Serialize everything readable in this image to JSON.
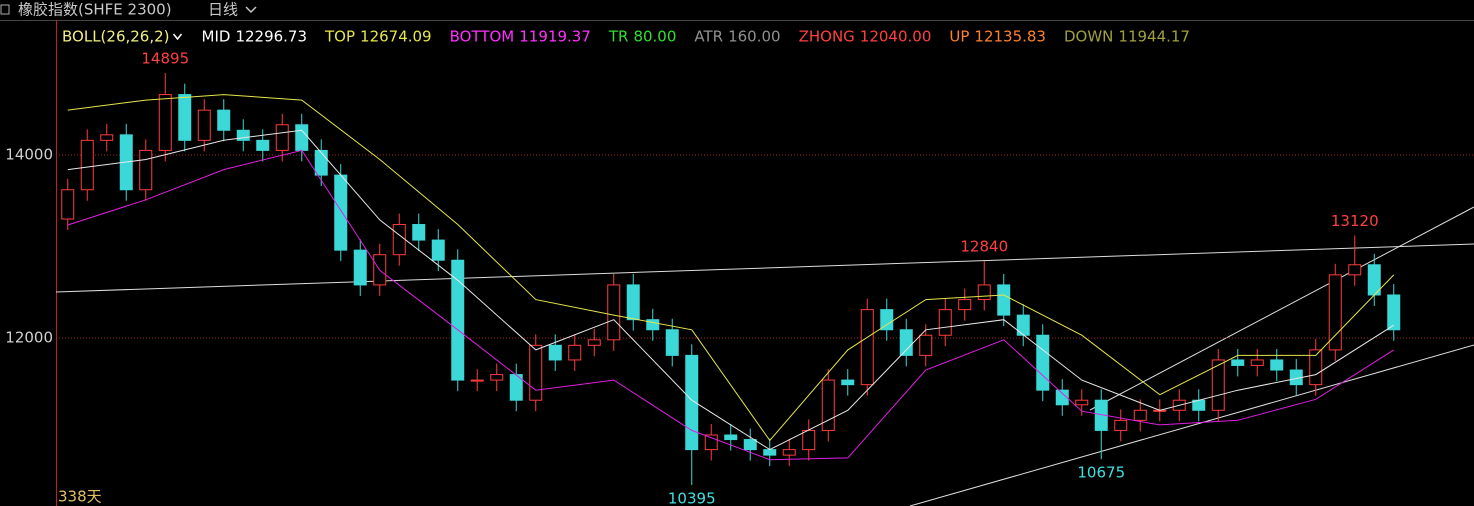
{
  "header": {
    "title": "橡胶指数(SHFE 2300)",
    "period": "日线"
  },
  "chart_data": {
    "type": "candlestick",
    "ylim": [
      10164,
      15475
    ],
    "yticks": [
      12000,
      14000
    ],
    "grid": true,
    "up_color": "#ff3c3c",
    "down_color": "#3cd8d8",
    "open": [
      13300,
      13620,
      14160,
      14220,
      13620,
      14050,
      14660,
      14160,
      14490,
      14270,
      14160,
      14050,
      14330,
      14050,
      13780,
      12960,
      12580,
      12910,
      13240,
      13070,
      12850,
      11540,
      11540,
      11600,
      11320,
      11920,
      11760,
      11920,
      11980,
      12580,
      12200,
      12090,
      11810,
      10780,
      10940,
      10890,
      10780,
      10720,
      10780,
      10990,
      11540,
      11490,
      12310,
      12090,
      11810,
      12030,
      12310,
      12420,
      12580,
      12250,
      12030,
      11430,
      11270,
      11320,
      10990,
      11100,
      11210,
      11210,
      11320,
      11210,
      11760,
      11700,
      11760,
      11650,
      11490,
      11870,
      12690,
      12800,
      12470
    ],
    "high": [
      13740,
      14280,
      14340,
      14340,
      14170,
      14895,
      14780,
      14610,
      14610,
      14390,
      14280,
      14450,
      14450,
      14170,
      13900,
      13080,
      13030,
      13360,
      13360,
      13190,
      12970,
      11660,
      11720,
      11720,
      12040,
      12040,
      12040,
      12100,
      12700,
      12700,
      12320,
      12210,
      11930,
      11060,
      11060,
      11010,
      10900,
      10900,
      11110,
      11660,
      11660,
      12430,
      12430,
      12210,
      12150,
      12430,
      12540,
      12840,
      12700,
      12370,
      12150,
      11550,
      11440,
      11440,
      11220,
      11330,
      11330,
      11440,
      11440,
      11880,
      11880,
      11880,
      11880,
      11770,
      11990,
      12810,
      13120,
      12920,
      12590
    ],
    "low": [
      13180,
      13500,
      14040,
      13500,
      13500,
      13930,
      14040,
      14040,
      14150,
      14040,
      13930,
      13930,
      13930,
      13660,
      12840,
      12460,
      12460,
      12790,
      12950,
      12730,
      11420,
      11420,
      11420,
      11200,
      11200,
      11640,
      11640,
      11800,
      11860,
      12080,
      11970,
      11690,
      10395,
      10660,
      10770,
      10660,
      10600,
      10600,
      10660,
      10870,
      11370,
      11370,
      11970,
      11690,
      11690,
      11910,
      12190,
      12300,
      12130,
      11910,
      11310,
      11150,
      11150,
      10675,
      10870,
      10980,
      11090,
      11090,
      11090,
      11090,
      11580,
      11580,
      11530,
      11370,
      11370,
      11750,
      12570,
      12350,
      11970
    ],
    "close": [
      13620,
      14160,
      14220,
      13620,
      14050,
      14660,
      14160,
      14490,
      14270,
      14160,
      14050,
      14330,
      14050,
      13780,
      12960,
      12580,
      12910,
      13240,
      13070,
      12850,
      11540,
      11540,
      11600,
      11320,
      11920,
      11760,
      11920,
      11980,
      12580,
      12200,
      12090,
      11810,
      10780,
      10940,
      10890,
      10780,
      10720,
      10780,
      10990,
      11540,
      11490,
      12310,
      12090,
      11810,
      12030,
      12310,
      12420,
      12580,
      12250,
      12030,
      11430,
      11270,
      11320,
      10990,
      11100,
      11210,
      11210,
      11320,
      11210,
      11760,
      11700,
      11760,
      11650,
      11490,
      11870,
      12690,
      12800,
      12470,
      12090
    ],
    "boll": {
      "x": [
        0,
        4,
        8,
        12,
        16,
        20,
        24,
        28,
        32,
        36,
        40,
        44,
        48,
        52,
        56,
        60,
        64,
        68
      ],
      "mid": [
        13840,
        13950,
        14160,
        14270,
        13290,
        12630,
        11870,
        12200,
        11320,
        10780,
        11210,
        12090,
        12200,
        11540,
        11210,
        11430,
        11600,
        12140
      ],
      "top": [
        14490,
        14600,
        14660,
        14600,
        13950,
        13240,
        12420,
        12250,
        12090,
        10880,
        11870,
        12420,
        12470,
        12030,
        11380,
        11810,
        11810,
        12690
      ],
      "bottom": [
        13235,
        13510,
        13840,
        14050,
        12740,
        12090,
        11430,
        11540,
        10990,
        10670,
        10690,
        11650,
        11980,
        11200,
        11050,
        11100,
        11330,
        11870
      ],
      "mid_color": "#e8e8e8",
      "top_color": "#e6e64a",
      "bottom_color": "#e020e0"
    },
    "legend": [
      {
        "name": "BOLL(26,26,2)",
        "color": "#f0f080"
      },
      {
        "name": "MID",
        "value": 12296.73,
        "color": "#ffffff"
      },
      {
        "name": "TOP",
        "value": 12674.09,
        "color": "#e6e64a"
      },
      {
        "name": "BOTTOM",
        "value": 11919.37,
        "color": "#ff30ff"
      },
      {
        "name": "TR",
        "value": 80,
        "value_label": "80.00",
        "color": "#30e030"
      },
      {
        "name": "ATR",
        "value": 160,
        "value_label": "160.00",
        "color": "#909090"
      },
      {
        "name": "ZHONG",
        "value": 12040,
        "value_label": "12040.00",
        "color": "#ff4040"
      },
      {
        "name": "UP",
        "value": 12135.83,
        "color": "#ff8030"
      },
      {
        "name": "DOWN",
        "value": 11944.17,
        "color": "#a0a040"
      }
    ],
    "annotations": [
      {
        "index": 5,
        "value": 14895,
        "kind": "high",
        "color": "#ff4040"
      },
      {
        "index": 32,
        "value": 10395,
        "kind": "low",
        "color": "#40e0e0"
      },
      {
        "index": 47,
        "value": 12840,
        "kind": "high",
        "color": "#ff4040"
      },
      {
        "index": 53,
        "value": 10675,
        "kind": "low",
        "color": "#40e0e0"
      },
      {
        "index": 66,
        "value": 13120,
        "kind": "high",
        "color": "#ff4040"
      }
    ],
    "footer_label": "338天"
  }
}
